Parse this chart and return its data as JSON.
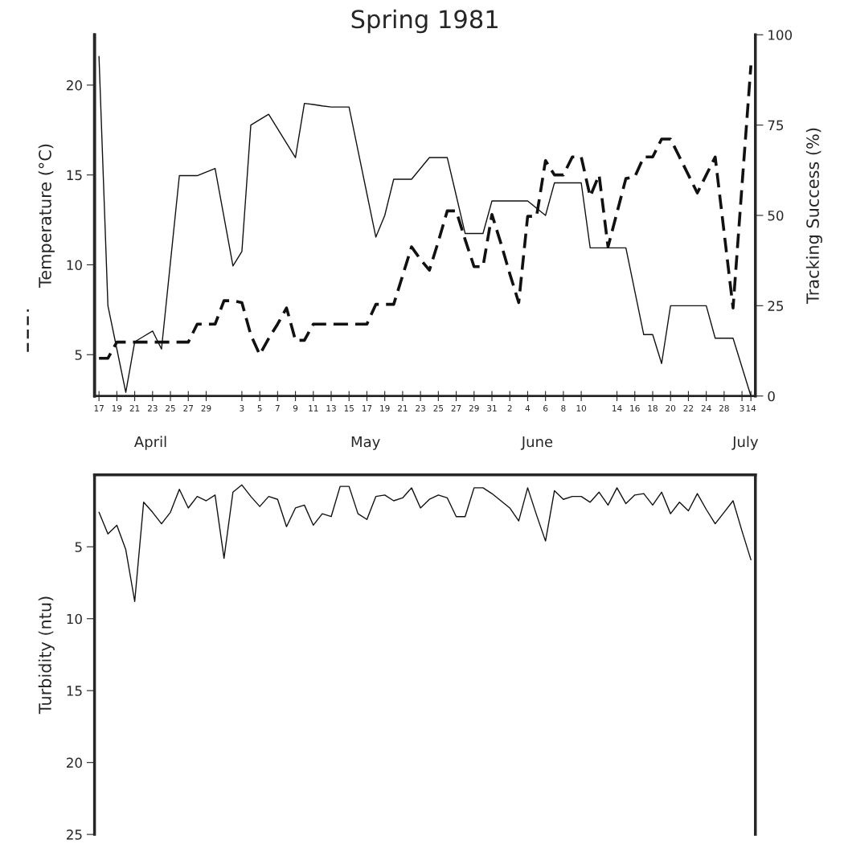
{
  "chart_data": [
    {
      "type": "line",
      "title": "Spring 1981",
      "ylabel": "Temperature (°C)",
      "y2label": "Tracking Success (%)",
      "annotations": [
        "April",
        "May",
        "June",
        "July"
      ],
      "categories": [
        "17",
        null,
        "19",
        null,
        "21",
        null,
        "23",
        null,
        "25",
        null,
        "27",
        null,
        "29",
        null,
        null,
        null,
        "3",
        null,
        "5",
        null,
        "7",
        null,
        "9",
        null,
        "11",
        null,
        "13",
        null,
        "15",
        null,
        "17",
        null,
        "19",
        null,
        "21",
        null,
        "23",
        null,
        "25",
        null,
        "27",
        null,
        "29",
        null,
        "31",
        null,
        "2",
        null,
        "4",
        null,
        "6",
        null,
        "8",
        null,
        "10",
        null,
        null,
        null,
        "14",
        null,
        "16",
        null,
        "18",
        null,
        "20",
        null,
        "22",
        null,
        "24",
        null,
        "28",
        null,
        "3",
        "14"
      ],
      "ylim": [
        2.7,
        22.8
      ],
      "yticks": [
        5,
        10,
        15,
        20
      ],
      "y2lim": [
        0,
        100
      ],
      "y2ticks": [
        0,
        25,
        50,
        75,
        100
      ],
      "marker": "none",
      "series": [
        {
          "color": "#111111",
          "line_style": "dashed",
          "values": [
            4.8,
            4.8,
            5.7,
            5.7,
            5.7,
            5.7,
            5.7,
            5.7,
            5.7,
            5.7,
            5.7,
            6.7,
            6.7,
            6.7,
            8,
            8,
            7.9,
            6.1,
            5,
            5.9,
            6.7,
            7.6,
            5.8,
            5.8,
            6.7,
            6.7,
            6.7,
            6.7,
            6.7,
            6.7,
            6.7,
            7.8,
            7.8,
            7.8,
            9.4,
            11,
            10.3,
            9.7,
            11.3,
            13,
            13,
            11.4,
            9.9,
            9.9,
            12.8,
            11.2,
            9.5,
            7.9,
            12.7,
            12.7,
            15.8,
            15,
            15,
            16,
            16,
            13.8,
            15,
            11,
            12.9,
            14.8,
            14.9,
            16,
            16,
            17,
            17,
            16,
            15,
            14,
            15,
            16,
            11.8,
            7.6,
            14.4,
            21.1
          ]
        },
        {
          "color": "#111111",
          "line_style": "solid",
          "axis": "y2",
          "values": [
            94,
            25,
            13,
            1,
            15,
            16.5,
            18,
            13,
            37,
            61,
            61,
            61,
            62,
            63,
            49.5,
            36,
            40,
            75,
            76.5,
            78,
            74,
            70,
            66,
            81,
            80.7,
            80.3,
            80,
            80,
            80,
            68,
            56,
            44,
            50,
            60,
            60,
            60,
            63,
            66,
            66,
            66,
            55.5,
            45,
            45,
            45,
            54,
            54,
            54,
            54,
            54,
            52,
            50,
            59,
            59,
            59,
            59,
            41,
            41,
            41,
            41,
            41,
            29,
            17,
            17,
            9,
            25,
            25,
            25,
            25,
            25,
            16,
            16,
            16,
            8,
            0
          ]
        }
      ]
    },
    {
      "type": "line",
      "ylabel": "Turbidity (ntu)",
      "tick_labels": "y",
      "categories": [
        null,
        null,
        null,
        null,
        null,
        null,
        null,
        null,
        null,
        null,
        null,
        null,
        null,
        null,
        null,
        null,
        null,
        null,
        null,
        null,
        null,
        null,
        null,
        null,
        null,
        null,
        null,
        null,
        null,
        null,
        null,
        null,
        null,
        null,
        null,
        null,
        null,
        null,
        null,
        null,
        null,
        null,
        null,
        null,
        null,
        null,
        null,
        null,
        null,
        null,
        null,
        null,
        null,
        null,
        null,
        null,
        null,
        null,
        null,
        null,
        null,
        null,
        null,
        null,
        null,
        null,
        null,
        null,
        null,
        null,
        null,
        null,
        null,
        null
      ],
      "ylim": [
        25,
        0
      ],
      "yticks": [
        5,
        10,
        15,
        20,
        25
      ],
      "marker": "none",
      "series": [
        {
          "color": "#111111",
          "line_style": "solid",
          "values": [
            2.6,
            4.1,
            3.5,
            5.2,
            8.8,
            1.9,
            2.6,
            3.4,
            2.6,
            1.0,
            2.3,
            1.5,
            1.8,
            1.4,
            5.8,
            1.2,
            0.7,
            1.5,
            2.2,
            1.5,
            1.7,
            3.6,
            2.3,
            2.1,
            3.5,
            2.7,
            2.9,
            0.8,
            0.8,
            2.7,
            3.1,
            1.5,
            1.4,
            1.8,
            1.6,
            0.9,
            2.3,
            1.7,
            1.4,
            1.6,
            2.9,
            2.9,
            0.9,
            0.9,
            1.3,
            1.8,
            2.3,
            3.2,
            0.9,
            2.8,
            4.6,
            1.1,
            1.7,
            1.5,
            1.5,
            1.9,
            1.2,
            2.1,
            0.9,
            2.0,
            1.4,
            1.3,
            2.1,
            1.2,
            2.7,
            1.9,
            2.5,
            1.3,
            2.4,
            3.4,
            2.6,
            1.8,
            3.9,
            5.9
          ]
        }
      ]
    }
  ]
}
